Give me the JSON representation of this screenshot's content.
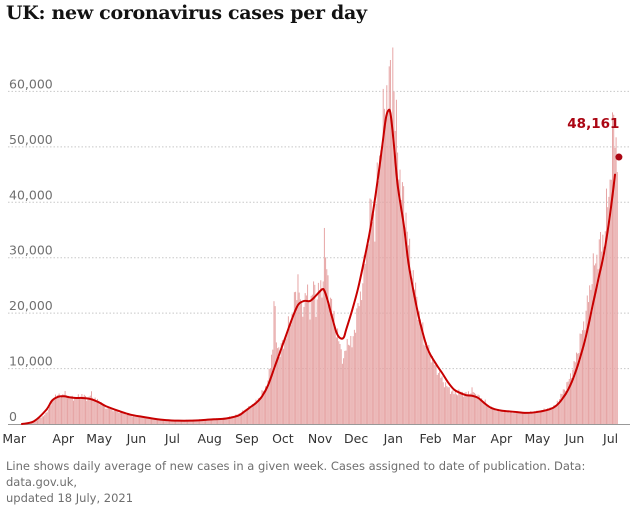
{
  "page": {
    "title": "UK: new coronavirus cases per day",
    "footnote": [
      "Line shows daily average of new cases in a given week. Cases assigned to date of publication. Data: data.gov.uk,",
      "updated 18 July, 2021"
    ]
  },
  "chart_data": {
    "type": "bar",
    "title": "UK: new coronavirus cases per day",
    "xlabel": "",
    "ylabel": "",
    "ylim": [
      0,
      70000
    ],
    "y_ticks": [
      0,
      10000,
      20000,
      30000,
      40000,
      50000,
      60000
    ],
    "y_tick_labels": [
      "0",
      "10,000",
      "20,000",
      "30,000",
      "40,000",
      "50,000",
      "60,000"
    ],
    "x_tick_labels": [
      "Mar",
      "Apr",
      "May",
      "Jun",
      "Jul",
      "Aug",
      "Sep",
      "Oct",
      "Nov",
      "Dec",
      "Jan",
      "Feb",
      "Mar",
      "Apr",
      "May",
      "Jun",
      "Jul"
    ],
    "x_tick_positions_days": [
      0,
      31,
      61,
      92,
      122,
      153,
      184,
      214,
      245,
      275,
      306,
      337,
      365,
      396,
      426,
      457,
      487
    ],
    "x_range_days": [
      0,
      504
    ],
    "start_date": "2020-03-01",
    "grid": true,
    "legend": "none",
    "colors": {
      "bars": "#e6a4a4",
      "line": "#c70000",
      "label": "#ab0613"
    },
    "series": [
      {
        "kind": "bars",
        "daily_points": [
          [
            0,
            5
          ],
          [
            10,
            300
          ],
          [
            20,
            1800
          ],
          [
            25,
            4000
          ],
          [
            28,
            5200
          ],
          [
            31,
            5000
          ],
          [
            35,
            5500
          ],
          [
            40,
            4800
          ],
          [
            45,
            4600
          ],
          [
            50,
            5200
          ],
          [
            55,
            4600
          ],
          [
            58,
            5400
          ],
          [
            61,
            4500
          ],
          [
            65,
            4000
          ],
          [
            70,
            3000
          ],
          [
            80,
            2300
          ],
          [
            90,
            1600
          ],
          [
            100,
            1200
          ],
          [
            110,
            900
          ],
          [
            120,
            700
          ],
          [
            130,
            650
          ],
          [
            140,
            700
          ],
          [
            150,
            800
          ],
          [
            160,
            950
          ],
          [
            170,
            1100
          ],
          [
            180,
            1700
          ],
          [
            188,
            2800
          ],
          [
            195,
            4000
          ],
          [
            200,
            5500
          ],
          [
            205,
            7500
          ],
          [
            209,
            14000
          ],
          [
            210,
            23000
          ],
          [
            212,
            15000
          ],
          [
            215,
            13000
          ],
          [
            220,
            16000
          ],
          [
            225,
            19500
          ],
          [
            228,
            23000
          ],
          [
            230,
            26500
          ],
          [
            233,
            20000
          ],
          [
            237,
            24000
          ],
          [
            240,
            21000
          ],
          [
            243,
            25000
          ],
          [
            245,
            21500
          ],
          [
            247,
            24500
          ],
          [
            250,
            23500
          ],
          [
            252,
            33500
          ],
          [
            254,
            27000
          ],
          [
            256,
            24000
          ],
          [
            260,
            19000
          ],
          [
            265,
            14000
          ],
          [
            268,
            11500
          ],
          [
            272,
            15500
          ],
          [
            275,
            14000
          ],
          [
            278,
            18500
          ],
          [
            282,
            23000
          ],
          [
            285,
            27500
          ],
          [
            288,
            34000
          ],
          [
            291,
            39000
          ],
          [
            294,
            36000
          ],
          [
            297,
            46000
          ],
          [
            300,
            53000
          ],
          [
            302,
            56000
          ],
          [
            304,
            60000
          ],
          [
            306,
            62000
          ],
          [
            308,
            58000
          ],
          [
            309,
            68000
          ],
          [
            311,
            55000
          ],
          [
            314,
            47000
          ],
          [
            317,
            41000
          ],
          [
            320,
            38000
          ],
          [
            323,
            30000
          ],
          [
            326,
            27000
          ],
          [
            329,
            22000
          ],
          [
            332,
            19000
          ],
          [
            335,
            15500
          ],
          [
            338,
            13500
          ],
          [
            341,
            12500
          ],
          [
            344,
            10500
          ],
          [
            347,
            9500
          ],
          [
            350,
            8000
          ],
          [
            355,
            6500
          ],
          [
            360,
            5500
          ],
          [
            365,
            5800
          ],
          [
            370,
            5400
          ],
          [
            375,
            6000
          ],
          [
            380,
            5000
          ],
          [
            385,
            4200
          ],
          [
            390,
            3000
          ],
          [
            395,
            2500
          ],
          [
            400,
            2300
          ],
          [
            410,
            2100
          ],
          [
            420,
            2000
          ],
          [
            430,
            2300
          ],
          [
            440,
            2800
          ],
          [
            445,
            3500
          ],
          [
            450,
            5500
          ],
          [
            455,
            7500
          ],
          [
            460,
            10500
          ],
          [
            465,
            15000
          ],
          [
            470,
            20000
          ],
          [
            475,
            27000
          ],
          [
            480,
            31000
          ],
          [
            485,
            34000
          ],
          [
            490,
            44000
          ],
          [
            492,
            52000
          ],
          [
            494,
            53500
          ],
          [
            496,
            48161
          ]
        ]
      },
      {
        "kind": "line",
        "name": "",
        "points": [
          [
            0,
            0
          ],
          [
            10,
            500
          ],
          [
            20,
            2500
          ],
          [
            25,
            4200
          ],
          [
            30,
            4900
          ],
          [
            35,
            5000
          ],
          [
            40,
            4800
          ],
          [
            45,
            4700
          ],
          [
            50,
            4700
          ],
          [
            55,
            4600
          ],
          [
            60,
            4300
          ],
          [
            65,
            3800
          ],
          [
            70,
            3200
          ],
          [
            80,
            2400
          ],
          [
            90,
            1700
          ],
          [
            100,
            1300
          ],
          [
            110,
            950
          ],
          [
            120,
            700
          ],
          [
            130,
            600
          ],
          [
            140,
            600
          ],
          [
            150,
            700
          ],
          [
            160,
            850
          ],
          [
            170,
            1000
          ],
          [
            180,
            1500
          ],
          [
            185,
            2200
          ],
          [
            190,
            3000
          ],
          [
            195,
            3800
          ],
          [
            200,
            5000
          ],
          [
            205,
            7000
          ],
          [
            210,
            10000
          ],
          [
            215,
            13000
          ],
          [
            220,
            16000
          ],
          [
            225,
            19000
          ],
          [
            230,
            21500
          ],
          [
            235,
            22200
          ],
          [
            240,
            22200
          ],
          [
            245,
            23200
          ],
          [
            250,
            24300
          ],
          [
            252,
            24000
          ],
          [
            255,
            22000
          ],
          [
            258,
            19500
          ],
          [
            262,
            16500
          ],
          [
            265,
            15500
          ],
          [
            268,
            15600
          ],
          [
            270,
            17000
          ],
          [
            275,
            20500
          ],
          [
            280,
            24500
          ],
          [
            285,
            29500
          ],
          [
            290,
            35000
          ],
          [
            295,
            42000
          ],
          [
            300,
            50000
          ],
          [
            303,
            55000
          ],
          [
            305,
            56500
          ],
          [
            307,
            56000
          ],
          [
            310,
            50000
          ],
          [
            313,
            43000
          ],
          [
            318,
            36000
          ],
          [
            322,
            29000
          ],
          [
            327,
            23000
          ],
          [
            332,
            18000
          ],
          [
            338,
            13500
          ],
          [
            345,
            10800
          ],
          [
            350,
            9200
          ],
          [
            355,
            7500
          ],
          [
            360,
            6200
          ],
          [
            365,
            5600
          ],
          [
            370,
            5200
          ],
          [
            375,
            5100
          ],
          [
            380,
            4700
          ],
          [
            385,
            3800
          ],
          [
            390,
            3000
          ],
          [
            395,
            2600
          ],
          [
            400,
            2400
          ],
          [
            410,
            2200
          ],
          [
            420,
            2000
          ],
          [
            430,
            2200
          ],
          [
            440,
            2700
          ],
          [
            445,
            3300
          ],
          [
            450,
            4500
          ],
          [
            455,
            6200
          ],
          [
            460,
            8700
          ],
          [
            465,
            12000
          ],
          [
            470,
            16000
          ],
          [
            475,
            21000
          ],
          [
            480,
            26000
          ],
          [
            485,
            31000
          ],
          [
            490,
            38000
          ],
          [
            494,
            45000
          ]
        ]
      }
    ],
    "annotations": [
      {
        "x": 496,
        "y": 48161,
        "label": "48,161"
      }
    ]
  }
}
